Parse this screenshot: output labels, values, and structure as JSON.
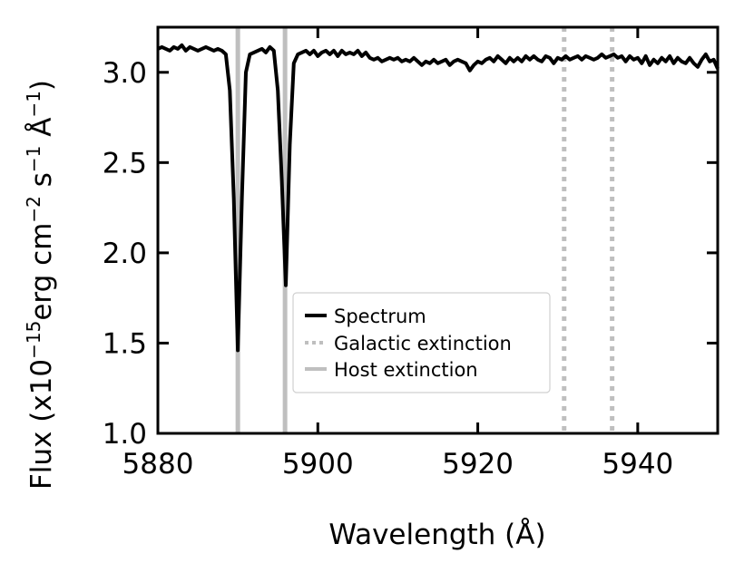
{
  "chart_data": {
    "type": "line",
    "xlabel": "Wavelength (Å)",
    "ylabel": {
      "prefix": "Flux (x10",
      "exp1": "−15",
      "unit1": "erg cm",
      "exp2": "−2",
      "unit2": " s",
      "exp3": "−1",
      "unit3": " Å",
      "exp4": "−1",
      "suffix": ")"
    },
    "xlim": [
      5880,
      5950
    ],
    "ylim": [
      1.0,
      3.25
    ],
    "xticks": [
      5880,
      5900,
      5920,
      5940
    ],
    "xtick_labels": [
      "5880",
      "5900",
      "5920",
      "5940"
    ],
    "yticks": [
      1.0,
      1.5,
      2.0,
      2.5,
      3.0
    ],
    "ytick_labels": [
      "1.0",
      "1.5",
      "2.0",
      "2.5",
      "3.0"
    ],
    "legend_position": "center-right",
    "colors": {
      "spectrum": "#000000",
      "galactic": "#bfbfbf",
      "host": "#bfbfbf"
    },
    "legend": [
      {
        "label": "Spectrum",
        "style": "solid-black"
      },
      {
        "label": "Galactic extinction",
        "style": "dotted-gray"
      },
      {
        "label": "Host extinction",
        "style": "solid-gray"
      }
    ],
    "vlines": [
      {
        "series": "Host extinction",
        "x": 5890.0
      },
      {
        "series": "Host extinction",
        "x": 5895.9
      },
      {
        "series": "Galactic extinction",
        "x": 5930.8
      },
      {
        "series": "Galactic extinction",
        "x": 5936.8
      }
    ],
    "series": [
      {
        "name": "Spectrum",
        "x": [
          5880.0,
          5880.5,
          5881.0,
          5881.5,
          5882.0,
          5882.5,
          5883.0,
          5883.5,
          5884.0,
          5884.5,
          5885.0,
          5885.5,
          5886.0,
          5886.5,
          5887.0,
          5887.5,
          5888.0,
          5888.5,
          5889.0,
          5889.5,
          5890.0,
          5890.5,
          5891.0,
          5891.5,
          5892.0,
          5892.5,
          5893.0,
          5893.5,
          5894.0,
          5894.5,
          5895.0,
          5895.5,
          5896.0,
          5896.5,
          5897.0,
          5897.5,
          5898.0,
          5898.5,
          5899.0,
          5899.5,
          5900.0,
          5900.5,
          5901.0,
          5901.5,
          5902.0,
          5902.5,
          5903.0,
          5903.5,
          5904.0,
          5904.5,
          5905.0,
          5905.5,
          5906.0,
          5906.5,
          5907.0,
          5907.5,
          5908.0,
          5908.5,
          5909.0,
          5909.5,
          5910.0,
          5910.5,
          5911.0,
          5911.5,
          5912.0,
          5912.5,
          5913.0,
          5913.5,
          5914.0,
          5914.5,
          5915.0,
          5915.5,
          5916.0,
          5916.5,
          5917.0,
          5917.5,
          5918.0,
          5918.5,
          5919.0,
          5919.5,
          5920.0,
          5920.5,
          5921.0,
          5921.5,
          5922.0,
          5922.5,
          5923.0,
          5923.5,
          5924.0,
          5924.5,
          5925.0,
          5925.5,
          5926.0,
          5926.5,
          5927.0,
          5927.5,
          5928.0,
          5928.5,
          5929.0,
          5929.5,
          5930.0,
          5930.5,
          5931.0,
          5931.5,
          5932.0,
          5932.5,
          5933.0,
          5933.5,
          5934.0,
          5934.5,
          5935.0,
          5935.5,
          5936.0,
          5936.5,
          5937.0,
          5937.5,
          5938.0,
          5938.5,
          5939.0,
          5939.5,
          5940.0,
          5940.5,
          5941.0,
          5941.5,
          5942.0,
          5942.5,
          5943.0,
          5943.5,
          5944.0,
          5944.5,
          5945.0,
          5945.5,
          5946.0,
          5946.5,
          5947.0,
          5947.5,
          5948.0,
          5948.5,
          5949.0,
          5949.5,
          5950.0
        ],
        "y": [
          3.13,
          3.14,
          3.13,
          3.12,
          3.14,
          3.13,
          3.15,
          3.12,
          3.14,
          3.13,
          3.12,
          3.13,
          3.14,
          3.13,
          3.12,
          3.13,
          3.12,
          3.1,
          2.9,
          2.3,
          1.46,
          2.3,
          3.0,
          3.1,
          3.11,
          3.12,
          3.13,
          3.11,
          3.14,
          3.12,
          2.9,
          2.4,
          1.82,
          2.6,
          3.05,
          3.1,
          3.11,
          3.12,
          3.1,
          3.12,
          3.09,
          3.11,
          3.12,
          3.1,
          3.12,
          3.09,
          3.12,
          3.1,
          3.11,
          3.1,
          3.12,
          3.09,
          3.11,
          3.08,
          3.07,
          3.08,
          3.06,
          3.07,
          3.08,
          3.07,
          3.08,
          3.06,
          3.07,
          3.06,
          3.08,
          3.06,
          3.04,
          3.06,
          3.05,
          3.07,
          3.05,
          3.06,
          3.07,
          3.04,
          3.06,
          3.07,
          3.06,
          3.05,
          3.01,
          3.04,
          3.06,
          3.05,
          3.07,
          3.08,
          3.06,
          3.09,
          3.07,
          3.05,
          3.08,
          3.06,
          3.08,
          3.06,
          3.09,
          3.07,
          3.09,
          3.07,
          3.06,
          3.09,
          3.08,
          3.05,
          3.08,
          3.07,
          3.09,
          3.07,
          3.08,
          3.09,
          3.07,
          3.09,
          3.08,
          3.07,
          3.08,
          3.1,
          3.08,
          3.09,
          3.1,
          3.08,
          3.09,
          3.06,
          3.09,
          3.07,
          3.08,
          3.05,
          3.09,
          3.04,
          3.07,
          3.05,
          3.08,
          3.06,
          3.09,
          3.05,
          3.08,
          3.06,
          3.05,
          3.08,
          3.05,
          3.03,
          3.07,
          3.1,
          3.06,
          3.07,
          3.02
        ]
      }
    ]
  }
}
